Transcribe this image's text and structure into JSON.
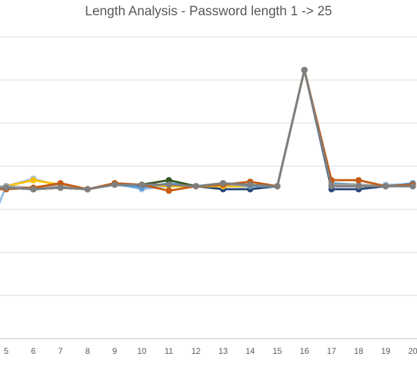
{
  "chart_data": {
    "type": "line",
    "title": "Length Analysis - Password length 1 -> 25",
    "xlabel": "",
    "ylabel": "",
    "categories": [
      "5",
      "6",
      "7",
      "8",
      "9",
      "10",
      "11",
      "12",
      "13",
      "14",
      "15",
      "16",
      "17",
      "18",
      "19",
      "20"
    ],
    "ylim": [
      0,
      100
    ],
    "grid": true,
    "legend": "none",
    "series": [
      {
        "color": "#264478",
        "values": [
          50.5,
          49.5,
          50,
          49.5,
          51,
          50.5,
          50.5,
          50.5,
          49.5,
          49.5,
          50.5,
          89,
          49.5,
          49.5,
          50.5,
          50.5
        ],
        "lead": 29
      },
      {
        "color": "#9dc3e6",
        "values": [
          50.5,
          53,
          50.5,
          49.5,
          51.5,
          49.5,
          50.5,
          50.5,
          50.5,
          50.5,
          50.5,
          89,
          50.5,
          50.5,
          51,
          51
        ],
        "lead": 29
      },
      {
        "color": "#ffc000",
        "values": [
          50.5,
          52.5,
          51,
          49.5,
          51,
          51,
          50.5,
          50.5,
          50.5,
          50.5,
          50.5,
          89,
          51,
          51,
          50.5,
          51
        ],
        "lead": 49.5
      },
      {
        "color": "#5b9bd5",
        "values": [
          50,
          49.5,
          50.5,
          49.5,
          51,
          50,
          51.5,
          50.5,
          51.5,
          50.5,
          50.5,
          89,
          51.5,
          51,
          50.5,
          51.5
        ],
        "lead": 50
      },
      {
        "color": "#375623",
        "values": [
          50.5,
          49.5,
          50,
          49.5,
          51,
          51,
          52.5,
          50.5,
          51,
          51,
          50.5,
          89,
          51,
          51,
          50.5,
          51
        ],
        "lead": 50
      },
      {
        "color": "#a5a5a5",
        "values": [
          50.5,
          50,
          50.5,
          49.5,
          51,
          51,
          51,
          50.5,
          51,
          51,
          50.5,
          89,
          51,
          51,
          50.5,
          51
        ],
        "lead": 50
      },
      {
        "color": "#c55a11",
        "values": [
          49.5,
          50,
          51.5,
          49.5,
          51.5,
          51,
          49,
          50.5,
          51,
          52,
          50.5,
          89,
          52.5,
          52.5,
          50.5,
          51
        ],
        "lead": 49.5
      },
      {
        "color": "#7f7f7f",
        "values": [
          50,
          49.5,
          50,
          49.5,
          51,
          51,
          51,
          50.5,
          51.5,
          51,
          50.5,
          89,
          50.5,
          50.5,
          50.5,
          50.5
        ],
        "lead": 49.5
      }
    ]
  }
}
